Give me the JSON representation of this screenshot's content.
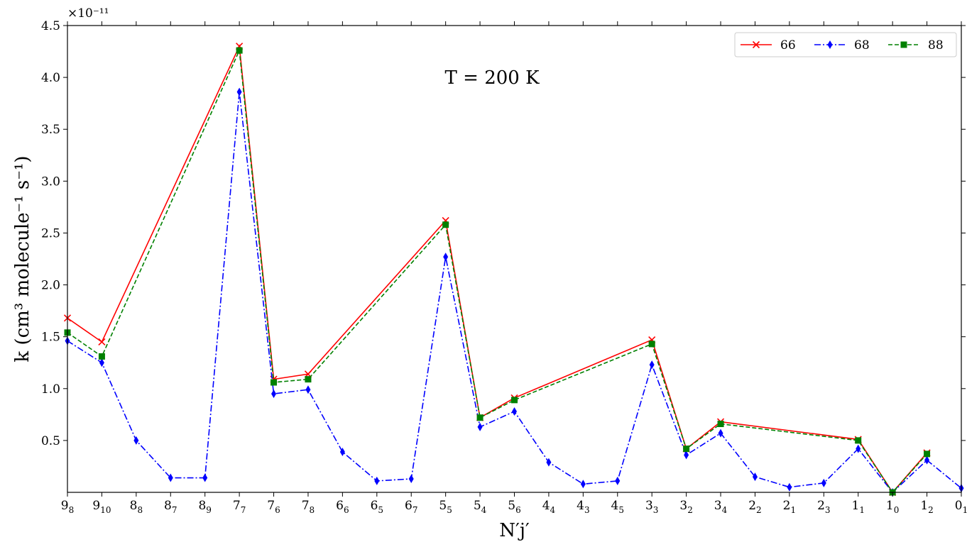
{
  "chart_data": {
    "type": "line",
    "title": "",
    "annotation": "T = 200 K",
    "ylabel": "k (cm³ molecule⁻¹ s⁻¹)",
    "xlabel": "N′j′",
    "y_scale_label": "×10⁻¹¹",
    "ylim": [
      0.0,
      4.5
    ],
    "yticks": [
      "0.5",
      "1.0",
      "1.5",
      "2.0",
      "2.5",
      "3.0",
      "3.5",
      "4.0",
      "4.5"
    ],
    "grid": false,
    "legend_position": "top-right",
    "categories": [
      {
        "main": "9",
        "sub": "8"
      },
      {
        "main": "9",
        "sub": "10"
      },
      {
        "main": "8",
        "sub": "8"
      },
      {
        "main": "8",
        "sub": "7"
      },
      {
        "main": "8",
        "sub": "9"
      },
      {
        "main": "7",
        "sub": "7"
      },
      {
        "main": "7",
        "sub": "6"
      },
      {
        "main": "7",
        "sub": "8"
      },
      {
        "main": "6",
        "sub": "6"
      },
      {
        "main": "6",
        "sub": "5"
      },
      {
        "main": "6",
        "sub": "7"
      },
      {
        "main": "5",
        "sub": "5"
      },
      {
        "main": "5",
        "sub": "4"
      },
      {
        "main": "5",
        "sub": "6"
      },
      {
        "main": "4",
        "sub": "4"
      },
      {
        "main": "4",
        "sub": "3"
      },
      {
        "main": "4",
        "sub": "5"
      },
      {
        "main": "3",
        "sub": "3"
      },
      {
        "main": "3",
        "sub": "2"
      },
      {
        "main": "3",
        "sub": "4"
      },
      {
        "main": "2",
        "sub": "2"
      },
      {
        "main": "2",
        "sub": "1"
      },
      {
        "main": "2",
        "sub": "3"
      },
      {
        "main": "1",
        "sub": "1"
      },
      {
        "main": "1",
        "sub": "0"
      },
      {
        "main": "1",
        "sub": "2"
      },
      {
        "main": "0",
        "sub": "1"
      }
    ],
    "series": [
      {
        "name": "66",
        "color": "#ff0000",
        "marker": "x",
        "dash": "solid",
        "points": [
          [
            0,
            1.68
          ],
          [
            1,
            1.45
          ],
          [
            5,
            4.3
          ],
          [
            6,
            1.09
          ],
          [
            7,
            1.14
          ],
          [
            11,
            2.62
          ],
          [
            12,
            0.72
          ],
          [
            13,
            0.91
          ],
          [
            17,
            1.47
          ],
          [
            18,
            0.42
          ],
          [
            19,
            0.68
          ],
          [
            23,
            0.51
          ],
          [
            24,
            0.0
          ],
          [
            25,
            0.38
          ]
        ]
      },
      {
        "name": "68",
        "color": "#0000ff",
        "marker": "diamond",
        "dash": "dashdot",
        "points": [
          [
            0,
            1.46
          ],
          [
            1,
            1.25
          ],
          [
            2,
            0.5
          ],
          [
            3,
            0.14
          ],
          [
            4,
            0.14
          ],
          [
            5,
            3.86
          ],
          [
            6,
            0.95
          ],
          [
            7,
            0.99
          ],
          [
            8,
            0.39
          ],
          [
            9,
            0.11
          ],
          [
            10,
            0.13
          ],
          [
            11,
            2.27
          ],
          [
            12,
            0.63
          ],
          [
            13,
            0.78
          ],
          [
            14,
            0.29
          ],
          [
            15,
            0.08
          ],
          [
            16,
            0.11
          ],
          [
            17,
            1.23
          ],
          [
            18,
            0.36
          ],
          [
            19,
            0.57
          ],
          [
            20,
            0.15
          ],
          [
            21,
            0.05
          ],
          [
            22,
            0.09
          ],
          [
            23,
            0.42
          ],
          [
            24,
            0.0
          ],
          [
            25,
            0.31
          ],
          [
            26,
            0.04
          ]
        ]
      },
      {
        "name": "88",
        "color": "#008000",
        "marker": "square",
        "dash": "dashed",
        "points": [
          [
            0,
            1.54
          ],
          [
            1,
            1.31
          ],
          [
            5,
            4.26
          ],
          [
            6,
            1.06
          ],
          [
            7,
            1.09
          ],
          [
            11,
            2.58
          ],
          [
            12,
            0.72
          ],
          [
            13,
            0.89
          ],
          [
            17,
            1.43
          ],
          [
            18,
            0.42
          ],
          [
            19,
            0.66
          ],
          [
            23,
            0.5
          ],
          [
            24,
            0.0
          ],
          [
            25,
            0.37
          ]
        ]
      }
    ]
  }
}
